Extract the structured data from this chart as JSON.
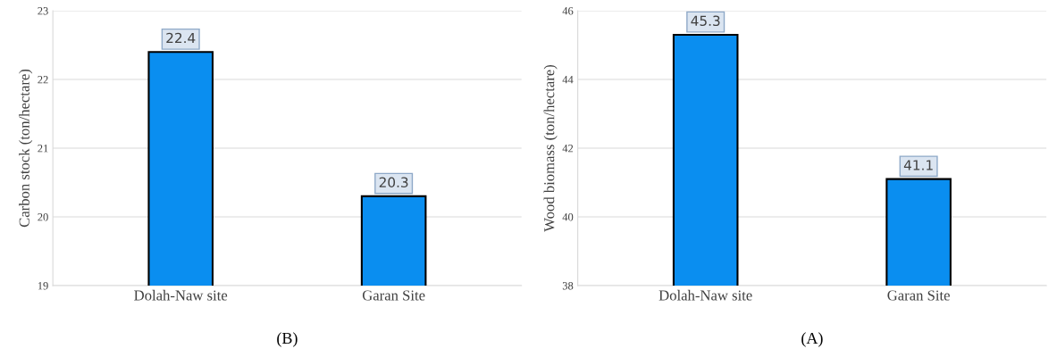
{
  "chart_data": [
    {
      "type": "bar",
      "ylabel": "Carbon stock (ton/hectare)",
      "categories": [
        "Dolah-Naw site",
        "Garan Site"
      ],
      "values": [
        22.4,
        20.3
      ],
      "color": "#0a8ef0",
      "ylim": [
        19,
        23
      ],
      "yticks": [
        19,
        20,
        21,
        22,
        23
      ],
      "grid": "y",
      "data_labels": true,
      "annotations": [
        "(B)"
      ]
    },
    {
      "type": "bar",
      "ylabel": "Wood biomass (ton/hectare)",
      "categories": [
        "Dolah-Naw site",
        "Garan Site"
      ],
      "values": [
        45.3,
        41.1
      ],
      "color": "#0a8ef0",
      "ylim": [
        38,
        46
      ],
      "yticks": [
        38,
        40,
        42,
        44,
        46
      ],
      "grid": "y",
      "data_labels": true,
      "annotations": [
        "(A)"
      ]
    }
  ]
}
